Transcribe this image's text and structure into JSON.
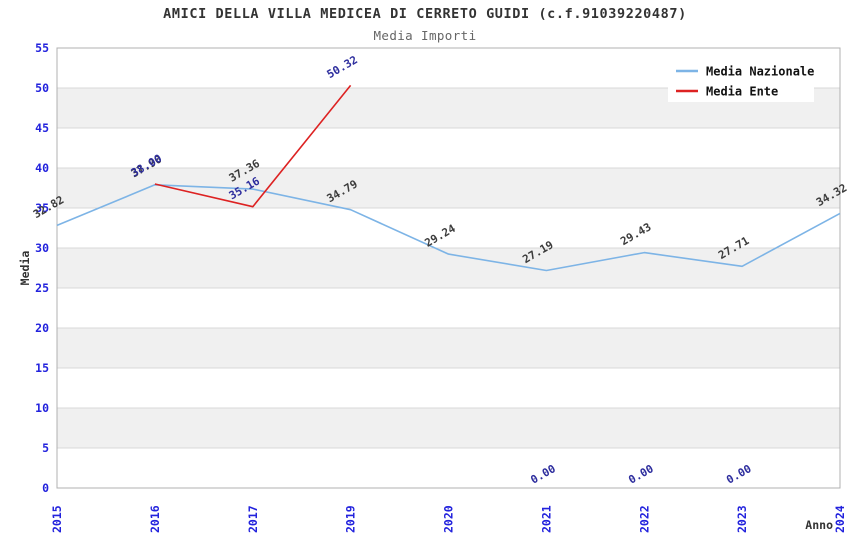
{
  "chart_data": {
    "type": "line",
    "title": "AMICI DELLA VILLA MEDICEA DI CERRETO GUIDI (c.f.91039220487)",
    "subtitle": "Media Importi",
    "xlabel": "Anno",
    "ylabel": "Media",
    "categories": [
      "2015",
      "2016",
      "2017",
      "2019",
      "2020",
      "2021",
      "2022",
      "2023",
      "2024"
    ],
    "ylim": [
      0,
      55
    ],
    "ytick_step": 5,
    "grid": true,
    "legend_position": "top-right",
    "series": [
      {
        "name": "Media Nazionale",
        "color": "#7db4e6",
        "label_color": "#3c3c3c",
        "line_at_zero": true,
        "values": [
          32.82,
          37.9,
          37.36,
          34.79,
          29.24,
          27.19,
          29.43,
          27.71,
          34.32
        ]
      },
      {
        "name": "Media Ente",
        "color": "#dd2222",
        "label_color": "#2e2e9e",
        "line_at_zero": false,
        "values": [
          null,
          38.0,
          35.16,
          50.32,
          null,
          0.0,
          0.0,
          0.0,
          null
        ]
      }
    ],
    "colors": {
      "tick": "#2222dd",
      "band": "#f0f0f0",
      "grid": "#d9d9d9",
      "border": "#b0b0b0",
      "axis_title": "#333333",
      "legend_text": "#111111",
      "background": "#ffffff"
    }
  }
}
